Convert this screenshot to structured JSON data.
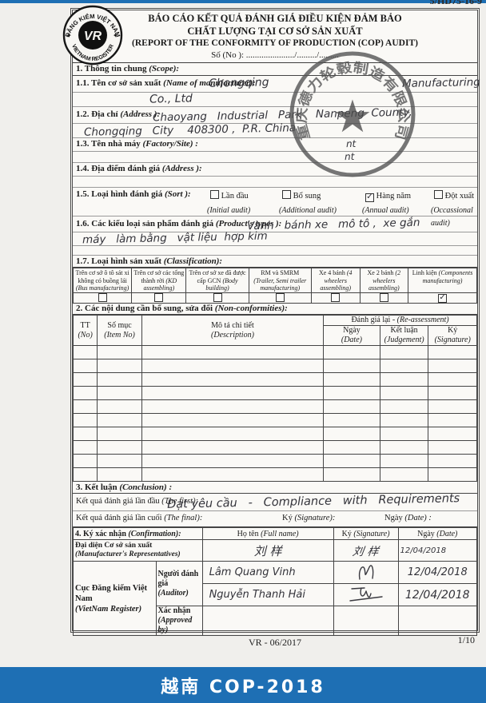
{
  "page": {
    "doc_ref": "5/HD75-16-9",
    "footer_code": "VR - 06/2017",
    "page_number": "1/10",
    "bottom_bar_title": "越南 COP-2018",
    "accent_blue": "#1e6fb4"
  },
  "logo": {
    "arc_top": "ĐĂNG KIỂM VIỆT NAM",
    "arc_bottom": "VIETNAM REGISTER",
    "monogram": "VR"
  },
  "stamp": {
    "ring_text": "重庆德力轮毂制造有限公司",
    "star": "★"
  },
  "header": {
    "title_line1": "BÁO CÁO KẾT QUẢ ĐÁNH GIÁ ĐIỀU KIỆN ĐẢM BẢO",
    "title_line2": "CHẤT LƯỢNG TẠI CƠ SỞ SẢN XUẤT",
    "title_line3": "(REPORT OF THE CONFORMITY OF PRODUCTION (COP) AUDIT)",
    "so_no_line": "Số (No ): ....................../........./........."
  },
  "s1": {
    "heading_vi": "1.  Thông tin chung ",
    "heading_en": "(Scope):",
    "f11_vi": "1.1. Tên cơ sở sản xuất ",
    "f11_en": "(Name of manufacturer):",
    "f11_hw_a": "Chongqing",
    "f11_hw_b": "Manufacturing",
    "f11_hw_c": "Co., Ltd",
    "f12_vi": "1.2. Địa chỉ ",
    "f12_en": "(Address ):",
    "f12_hw_a": "Chaoyang   Industrial   Park    Nanpeng  County,",
    "f12_hw_b": "Chongqing   City    408300 ,  P.R. China",
    "f13_vi": "1.3. Tên nhà máy ",
    "f13_en": "(Factory/Site) :",
    "f13_hw": "nt",
    "f13_hw2": "nt",
    "f14_vi": "1.4. Địa điểm đánh giá ",
    "f14_en": "(Address ):",
    "f15_vi": "1.5. Loại hình đánh giá ",
    "f15_en": "(Sort ):",
    "sort": [
      {
        "vi": "Lần đầu",
        "en": "(Initial audit)",
        "mark": ""
      },
      {
        "vi": "Bổ sung",
        "en": "(Additional audit)",
        "mark": ""
      },
      {
        "vi": "Hàng năm",
        "en": "(Annual audit)",
        "mark": "✓"
      },
      {
        "vi": "Đột xuất",
        "en": "(Occassional audit)",
        "mark": ""
      }
    ],
    "f16_vi": "1.6. Các kiểu loại sản phẩm đánh giá ",
    "f16_en": "(Product's types ):",
    "f16_hw_a": "Vành   bánh xe   mô tô ,  xe gắn",
    "f16_hw_b": "máy   làm bằng   vật liệu  hợp kim",
    "f17_vi": "1.7. Loại hình sản xuất ",
    "f17_en": "(Classification):",
    "classification": [
      {
        "vi": "Trên cơ sở ô tô sát xi không có buồng lái",
        "en": "(Bus manufacturing)",
        "mark": ""
      },
      {
        "vi": "Trên cơ sở các tổng thành rời",
        "en": "(KD assembling)",
        "mark": ""
      },
      {
        "vi": "Trên cơ sở xe đã được cấp GCN",
        "en": "(Body building)",
        "mark": ""
      },
      {
        "vi": "RM và SMRM",
        "en": "(Trailer, Semi trailer manufacturing)",
        "mark": ""
      },
      {
        "vi": "Xe 4 bánh",
        "en": "(4 wheelers assembling)",
        "mark": ""
      },
      {
        "vi": "Xe 2 bánh",
        "en": "(2 wheelers assembling)",
        "mark": ""
      },
      {
        "vi": "Linh kiện",
        "en": "(Components manufacturing)",
        "mark": "✓"
      }
    ]
  },
  "s2": {
    "heading_vi": "2. Các nội dung cần bổ sung, sửa đổi ",
    "heading_en": "(Non-conformities):",
    "col_tt_vi": "TT",
    "col_tt_en": "(No)",
    "col_item_vi": "Số mục",
    "col_item_en": "(Item No)",
    "col_desc_vi": "Mô tả chi tiết",
    "col_desc_en": "(Description)",
    "group_vi": "Đánh giá lại - ",
    "group_en": "(Re-assessment)",
    "col_date_vi": "Ngày",
    "col_date_en": "(Date)",
    "col_judge_vi": "Kết luận",
    "col_judge_en": "(Judgement)",
    "col_sign_vi": "Ký",
    "col_sign_en": "(Signature)",
    "empty_row_count": 10
  },
  "s3": {
    "heading_vi": "3. Kết luận ",
    "heading_en": "(Conclusion) :",
    "first_vi": "Kết quả đánh giá lần đầu ",
    "first_en": "(The first):",
    "first_hw": "Đạt yêu cầu   -   Compliance   with   Requirements",
    "final_vi": "Kết quả đánh giá lần cuối ",
    "final_en": "(The final):",
    "final_sign_vi": "Ký ",
    "final_sign_en": "(Signature):",
    "final_date_vi": "Ngày ",
    "final_date_en": "(Date) :"
  },
  "s4": {
    "heading_vi": "4. Ký xác nhận ",
    "heading_en": "(Confirmation):",
    "col_name_vi": "Họ tên ",
    "col_name_en": "(Full name)",
    "col_sign_vi": "Ký ",
    "col_sign_en": "(Signature)",
    "col_date_vi": "Ngày ",
    "col_date_en": "(Date)",
    "rep_vi": "Đại diện Cơ sở sản xuất ",
    "rep_en": "(Manufacturer's Representatives)",
    "rep_name_hw": "刘 样",
    "rep_sign_hw": "刘 样",
    "rep_date_hw": "12/04/2018",
    "vr_vi": "Cục Đăng kiểm Việt Nam ",
    "vr_en": "(VietNam Register)",
    "auditor_vi": "Người đánh giá ",
    "auditor_en": "(Auditor)",
    "auditors": [
      {
        "name_hw": "Lâm Quang Vinh",
        "date_hw": "12/04/2018"
      },
      {
        "name_hw": "Nguyễn Thanh Hải",
        "date_hw": "12/04/2018"
      }
    ],
    "approved_vi": "Xác nhận ",
    "approved_en": "(Approved by)"
  }
}
